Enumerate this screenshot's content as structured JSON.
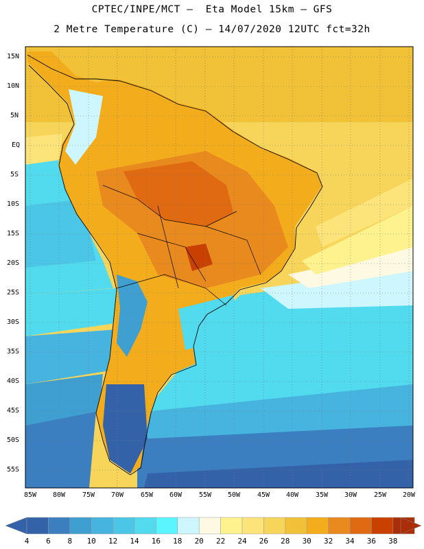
{
  "header": {
    "line1": "CPTEC/INPE/MCT –  Eta Model 15km – GFS",
    "line2": "2 Metre Temperature (C) – 14/07/2020 12UTC fct=32h"
  },
  "lat_labels": [
    "15N",
    "10N",
    "5N",
    "EQ",
    "5S",
    "10S",
    "15S",
    "20S",
    "25S",
    "30S",
    "35S",
    "40S",
    "45S",
    "50S",
    "55S"
  ],
  "lon_labels": [
    "85W",
    "80W",
    "75W",
    "70W",
    "65W",
    "60W",
    "55W",
    "50W",
    "45W",
    "40W",
    "35W",
    "30W",
    "25W",
    "20W"
  ],
  "colorbar": {
    "ticks": [
      "4",
      "6",
      "8",
      "10",
      "12",
      "14",
      "16",
      "18",
      "20",
      "22",
      "24",
      "26",
      "28",
      "30",
      "32",
      "34",
      "36",
      "38"
    ],
    "colors": [
      "#3462a8",
      "#3b7fc0",
      "#3e9fd0",
      "#46b4de",
      "#4cc6e6",
      "#52dbee",
      "#5af5ff",
      "#cdf6ff",
      "#fdf9e3",
      "#fdf28e",
      "#fce47a",
      "#f7d55a",
      "#f1c138",
      "#f2ac1c",
      "#e98a1e",
      "#df6a11",
      "#c94100",
      "#aa2e0a"
    ]
  }
}
